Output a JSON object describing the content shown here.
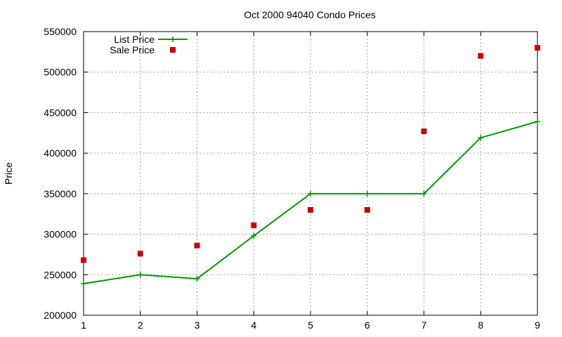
{
  "chart_data": {
    "type": "line",
    "title": "Oct 2000 94040 Condo Prices",
    "xlabel": "",
    "ylabel": "Price",
    "x": [
      1,
      2,
      3,
      4,
      5,
      6,
      7,
      8,
      9
    ],
    "xlim": [
      1,
      9
    ],
    "ylim": [
      200000,
      550000
    ],
    "xticks": [
      "1",
      "2",
      "3",
      "4",
      "5",
      "6",
      "7",
      "8",
      "9"
    ],
    "yticks": [
      "200000",
      "250000",
      "300000",
      "350000",
      "400000",
      "450000",
      "500000",
      "550000"
    ],
    "grid": true,
    "legend_position": "top-left",
    "series": [
      {
        "name": "List Price",
        "style": "linespoints",
        "marker": "plus",
        "color": "#009900",
        "values": [
          239000,
          250000,
          245000,
          298000,
          350000,
          350000,
          350000,
          419000,
          439000
        ]
      },
      {
        "name": "Sale Price",
        "style": "points",
        "marker": "square",
        "color": "#cc0000",
        "values": [
          268000,
          276000,
          286000,
          311000,
          330000,
          330000,
          427000,
          520000,
          530000
        ]
      }
    ]
  }
}
